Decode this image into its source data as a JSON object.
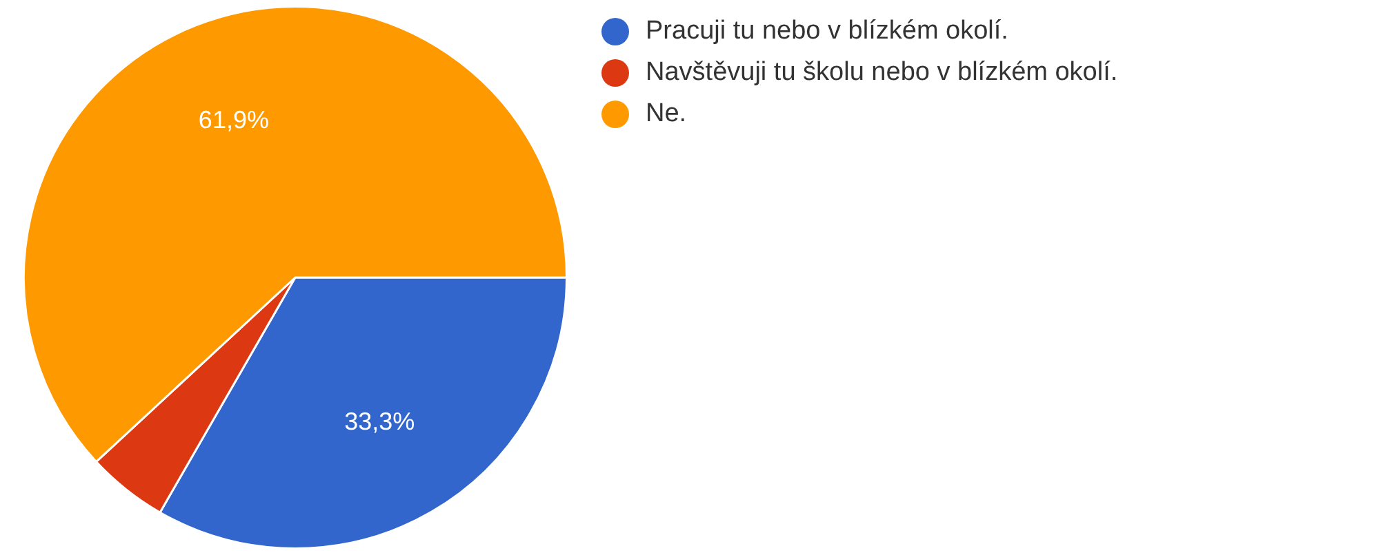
{
  "chart_data": {
    "type": "pie",
    "categories": [
      "Pracuji tu nebo v blízkém okolí.",
      "Navštěvuji tu školu nebo v blízkém okolí.",
      "Ne."
    ],
    "values": [
      33.3,
      4.8,
      61.9
    ],
    "value_labels": [
      "33,3%",
      null,
      "61,9%"
    ],
    "colors": [
      "#3366cc",
      "#dc3912",
      "#ff9900"
    ],
    "legend": "top right"
  }
}
